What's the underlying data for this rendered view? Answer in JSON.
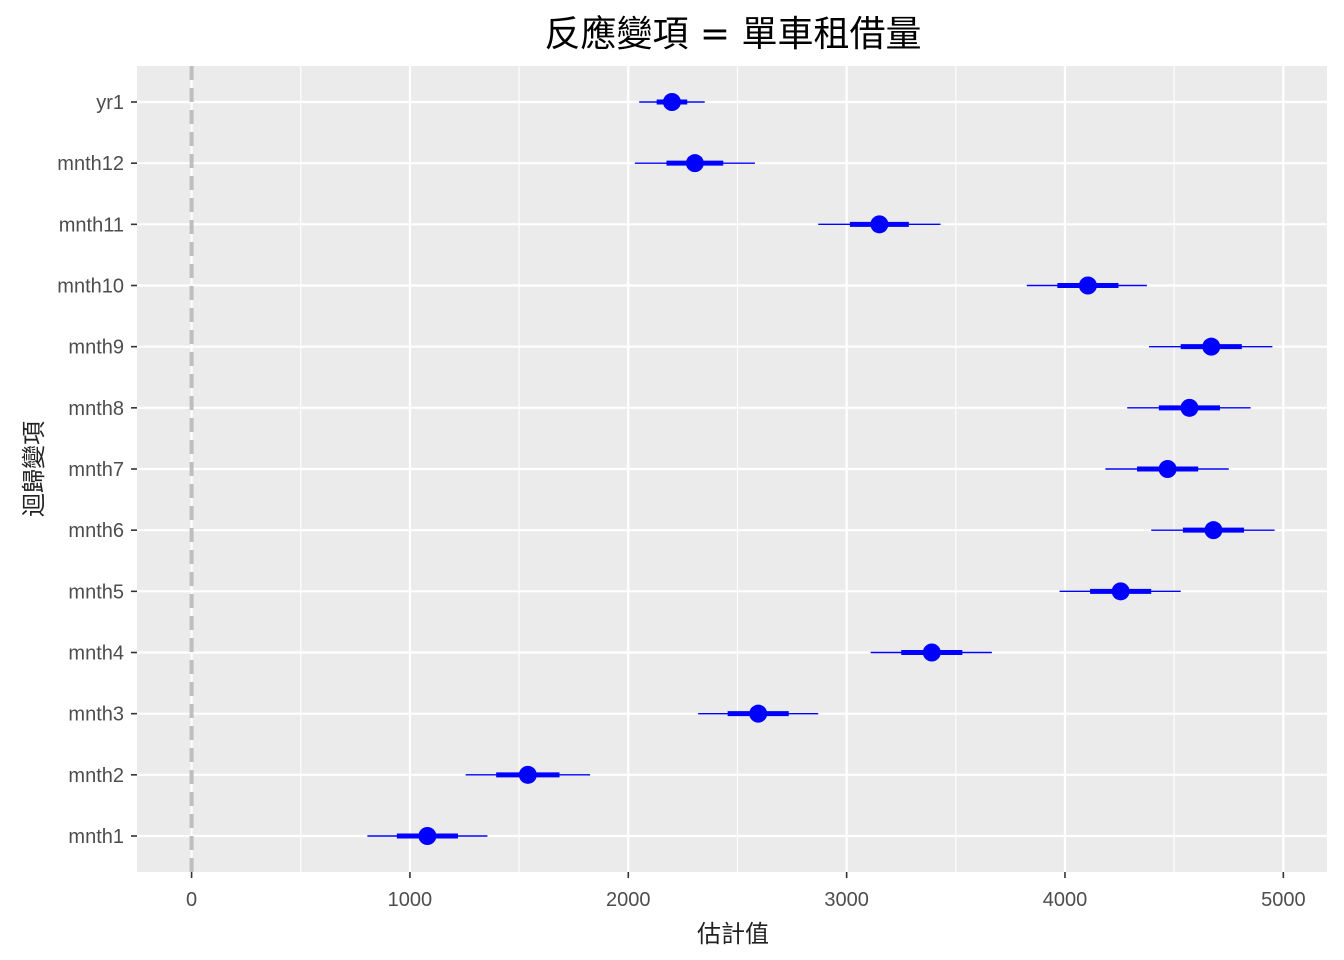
{
  "chart_data": {
    "type": "coefficient-plot",
    "title": "反應變項 = 單車租借量",
    "xlabel": "估計值",
    "ylabel": "迴歸變項",
    "xlim": [
      -250,
      5200
    ],
    "x_ticks": [
      0,
      1000,
      2000,
      3000,
      4000,
      5000
    ],
    "x_minor_ticks": [
      500,
      1500,
      2500,
      3500,
      4500
    ],
    "reference_line": 0,
    "colors": {
      "point": "#0000FF",
      "reference": "#BEBEBE",
      "panel": "#EBEBEB"
    },
    "terms": [
      {
        "name": "yr1",
        "estimate": 2200,
        "inner": [
          2130,
          2270
        ],
        "outer": [
          2050,
          2350
        ]
      },
      {
        "name": "mnth12",
        "estimate": 2305,
        "inner": [
          2175,
          2435
        ],
        "outer": [
          2030,
          2580
        ]
      },
      {
        "name": "mnth11",
        "estimate": 3150,
        "inner": [
          3015,
          3285
        ],
        "outer": [
          2870,
          3430
        ]
      },
      {
        "name": "mnth10",
        "estimate": 4105,
        "inner": [
          3965,
          4245
        ],
        "outer": [
          3825,
          4375
        ]
      },
      {
        "name": "mnth9",
        "estimate": 4670,
        "inner": [
          4530,
          4810
        ],
        "outer": [
          4385,
          4950
        ]
      },
      {
        "name": "mnth8",
        "estimate": 4570,
        "inner": [
          4430,
          4710
        ],
        "outer": [
          4285,
          4850
        ]
      },
      {
        "name": "mnth7",
        "estimate": 4470,
        "inner": [
          4330,
          4610
        ],
        "outer": [
          4185,
          4750
        ]
      },
      {
        "name": "mnth6",
        "estimate": 4680,
        "inner": [
          4540,
          4820
        ],
        "outer": [
          4395,
          4960
        ]
      },
      {
        "name": "mnth5",
        "estimate": 4255,
        "inner": [
          4115,
          4395
        ],
        "outer": [
          3975,
          4530
        ]
      },
      {
        "name": "mnth4",
        "estimate": 3390,
        "inner": [
          3250,
          3530
        ],
        "outer": [
          3110,
          3665
        ]
      },
      {
        "name": "mnth3",
        "estimate": 2595,
        "inner": [
          2455,
          2735
        ],
        "outer": [
          2320,
          2870
        ]
      },
      {
        "name": "mnth2",
        "estimate": 1540,
        "inner": [
          1395,
          1685
        ],
        "outer": [
          1255,
          1825
        ]
      },
      {
        "name": "mnth1",
        "estimate": 1080,
        "inner": [
          940,
          1220
        ],
        "outer": [
          805,
          1355
        ]
      }
    ]
  }
}
